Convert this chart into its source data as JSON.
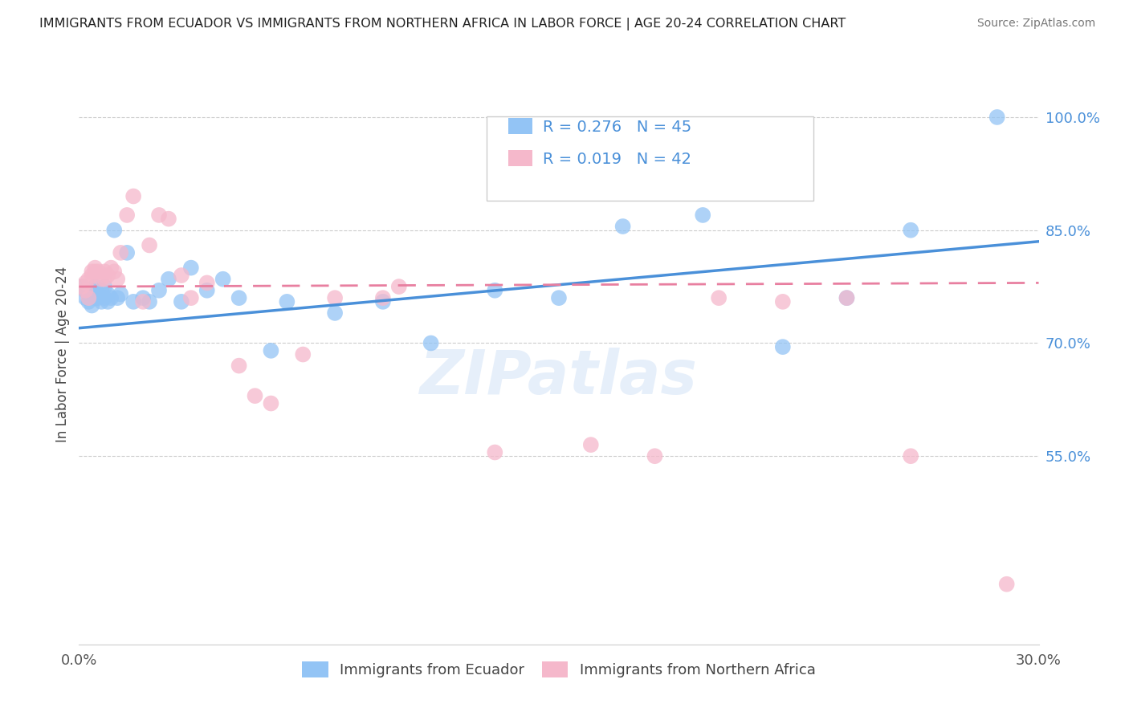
{
  "title": "IMMIGRANTS FROM ECUADOR VS IMMIGRANTS FROM NORTHERN AFRICA IN LABOR FORCE | AGE 20-24 CORRELATION CHART",
  "source": "Source: ZipAtlas.com",
  "ylabel": "In Labor Force | Age 20-24",
  "ytick_labels": [
    "100.0%",
    "85.0%",
    "70.0%",
    "55.0%"
  ],
  "ytick_values": [
    1.0,
    0.85,
    0.7,
    0.55
  ],
  "xlim": [
    0.0,
    0.3
  ],
  "ylim": [
    0.3,
    1.07
  ],
  "legend_r1": "0.276",
  "legend_n1": "45",
  "legend_r2": "0.019",
  "legend_n2": "42",
  "color_blue": "#93c4f5",
  "color_pink": "#f5b8cb",
  "color_blue_text": "#4a90d9",
  "trend_blue_color": "#4a90d9",
  "trend_pink_color": "#e87fa0",
  "watermark": "ZIPatlas",
  "legend_label1": "Immigrants from Ecuador",
  "legend_label2": "Immigrants from Northern Africa",
  "ecuador_x": [
    0.001,
    0.002,
    0.002,
    0.003,
    0.003,
    0.004,
    0.004,
    0.005,
    0.005,
    0.006,
    0.006,
    0.007,
    0.007,
    0.008,
    0.008,
    0.009,
    0.009,
    0.01,
    0.011,
    0.012,
    0.013,
    0.015,
    0.017,
    0.02,
    0.022,
    0.025,
    0.028,
    0.032,
    0.035,
    0.04,
    0.045,
    0.05,
    0.06,
    0.065,
    0.08,
    0.095,
    0.11,
    0.13,
    0.15,
    0.17,
    0.195,
    0.22,
    0.24,
    0.26,
    0.287
  ],
  "ecuador_y": [
    0.775,
    0.76,
    0.77,
    0.755,
    0.765,
    0.75,
    0.77,
    0.76,
    0.775,
    0.765,
    0.76,
    0.77,
    0.755,
    0.76,
    0.775,
    0.765,
    0.755,
    0.76,
    0.85,
    0.76,
    0.765,
    0.82,
    0.755,
    0.76,
    0.755,
    0.77,
    0.785,
    0.755,
    0.8,
    0.77,
    0.785,
    0.76,
    0.69,
    0.755,
    0.74,
    0.755,
    0.7,
    0.77,
    0.76,
    0.855,
    0.87,
    0.695,
    0.76,
    0.85,
    1.0
  ],
  "nafrica_x": [
    0.001,
    0.002,
    0.002,
    0.003,
    0.003,
    0.004,
    0.004,
    0.005,
    0.005,
    0.006,
    0.007,
    0.008,
    0.008,
    0.009,
    0.01,
    0.011,
    0.012,
    0.013,
    0.015,
    0.017,
    0.02,
    0.022,
    0.025,
    0.028,
    0.032,
    0.035,
    0.04,
    0.05,
    0.055,
    0.06,
    0.07,
    0.08,
    0.095,
    0.1,
    0.13,
    0.16,
    0.18,
    0.2,
    0.22,
    0.24,
    0.26,
    0.29
  ],
  "nafrica_y": [
    0.775,
    0.77,
    0.78,
    0.76,
    0.785,
    0.795,
    0.79,
    0.8,
    0.795,
    0.795,
    0.785,
    0.795,
    0.785,
    0.79,
    0.8,
    0.795,
    0.785,
    0.82,
    0.87,
    0.895,
    0.755,
    0.83,
    0.87,
    0.865,
    0.79,
    0.76,
    0.78,
    0.67,
    0.63,
    0.62,
    0.685,
    0.76,
    0.76,
    0.775,
    0.555,
    0.565,
    0.55,
    0.76,
    0.755,
    0.76,
    0.55,
    0.38
  ],
  "trend_blue_x0": 0.0,
  "trend_blue_y0": 0.72,
  "trend_blue_x1": 0.3,
  "trend_blue_y1": 0.835,
  "trend_pink_x0": 0.0,
  "trend_pink_y0": 0.775,
  "trend_pink_x1": 0.3,
  "trend_pink_y1": 0.78
}
